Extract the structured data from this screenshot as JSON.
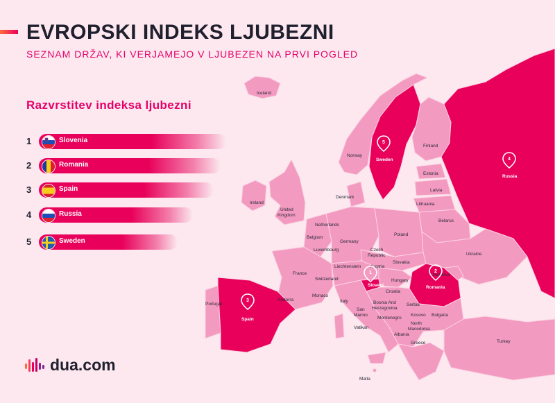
{
  "header": {
    "title": "EVROPSKI INDEKS LJUBEZNI",
    "subtitle": "SEZNAM DRŽAV, KI VERJAMEJO V LJUBEZEN NA PRVI POGLED"
  },
  "ranking": {
    "title": "Razvrstitev indeksa ljubezni",
    "items": [
      {
        "rank": "1",
        "country": "Slovenia"
      },
      {
        "rank": "2",
        "country": "Romania"
      },
      {
        "rank": "3",
        "country": "Spain"
      },
      {
        "rank": "4",
        "country": "Russia"
      },
      {
        "rank": "5",
        "country": "Sweden"
      }
    ]
  },
  "map": {
    "labels": {
      "iceland": "Iceland",
      "norway": "Norway",
      "sweden": "Sweden",
      "finland": "Finland",
      "russia": "Russia",
      "estonia": "Estonia",
      "latvia": "Latvia",
      "lithuania": "Lithuania",
      "denmark": "Denmark",
      "ireland": "Ireland",
      "uk_1": "United",
      "uk_2": "Kingdom",
      "netherlands": "Netherlands",
      "belgium": "Belgium",
      "luxembourg": "Luxembourg",
      "germany": "Germany",
      "poland": "Poland",
      "belarus": "Belarus",
      "ukraine": "Ukraine",
      "czech_1": "Czech",
      "czech_2": "Republic",
      "slovakia": "Slovakia",
      "moldova": "Moldova",
      "liechtenstein": "Liechtenstein",
      "austria": "Austria",
      "france": "France",
      "switzerland": "Switzerland",
      "hungary": "Hungary",
      "romania": "Romania",
      "slovenia": "Sloveni",
      "croatia": "Croatia",
      "monaco": "Monaco",
      "italy": "Italy",
      "portugal": "Portugal",
      "andorra": "Andorra",
      "spain": "Spain",
      "bosnia_1": "Bosnia And",
      "bosnia_2": "Herzegovina",
      "serbia": "Serbia",
      "san_marino_1": "San",
      "san_marino_2": "Marino",
      "montenegro": "Montenegro",
      "kosovo": "Kosovo",
      "bulgaria": "Bulgaria",
      "north_macedonia_1": "North",
      "north_macedonia_2": "Macedonia",
      "vatikan": "Vatikan",
      "albania": "Albania",
      "greece": "Greece",
      "turkey": "Turkey",
      "malta": "Malta"
    },
    "pins": {
      "slovenia": "1",
      "romania": "2",
      "spain": "3",
      "russia": "4",
      "sweden": "5"
    }
  },
  "brand": {
    "logo_text": "dua.com"
  },
  "colors": {
    "background": "#fce8ee",
    "land": "#f39ac0",
    "highlight": "#e8005a",
    "border": "#fbd3e3",
    "title": "#1f1f2e",
    "accent": "#e5006a"
  }
}
